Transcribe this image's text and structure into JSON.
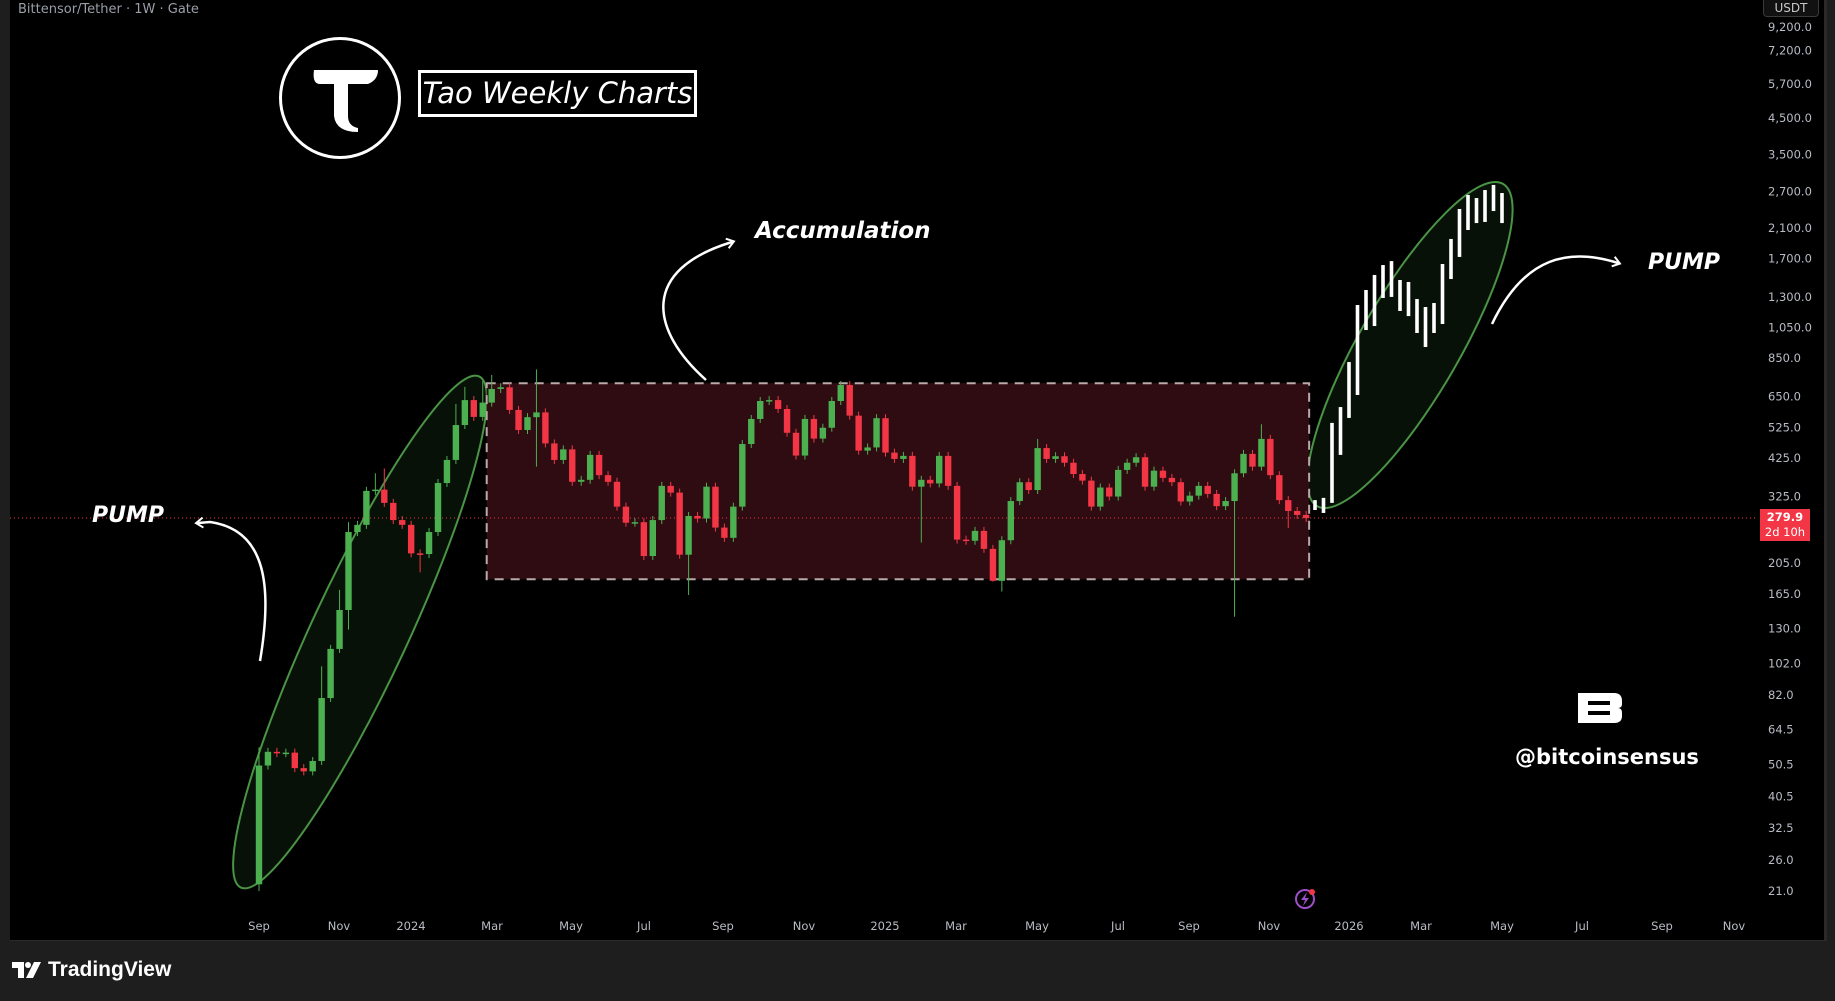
{
  "header": {
    "symbol": "Bittensor/Tether · 1W · Gate",
    "currency": "USDT"
  },
  "overlay": {
    "title": "Tao Weekly Charts",
    "accumulation_label": "Accumulation",
    "pump_left_label": "PUMP",
    "pump_right_label": "PUMP",
    "watermark_handle": "@bitcoinsensus",
    "watermark_logo": "B"
  },
  "price_tag": {
    "price": "279.9",
    "countdown": "2d 10h"
  },
  "footer": {
    "brand": "TradingView"
  },
  "colors": {
    "up": "#4caf50",
    "down": "#f23645",
    "projection": "#ffffff",
    "range_fill": "#2e0c12",
    "ellipse": "#4a9445",
    "background": "#000000"
  },
  "chart_data": {
    "type": "candlestick",
    "title": "Tao Weekly Charts",
    "y_scale": "log",
    "ylim": [
      21,
      9200
    ],
    "y_ticks": [
      "9,200.0",
      "7,200.0",
      "5,700.0",
      "4,500.0",
      "3,500.0",
      "2,700.0",
      "2,100.0",
      "1,700.0",
      "1,300.0",
      "1,050.0",
      "850.0",
      "650.0",
      "525.0",
      "425.0",
      "325.0",
      "205.0",
      "165.0",
      "130.0",
      "102.0",
      "82.0",
      "64.5",
      "50.5",
      "40.5",
      "32.5",
      "26.0",
      "21.0"
    ],
    "x_ticks": [
      "Sep",
      "Nov",
      "2024",
      "Mar",
      "May",
      "Jul",
      "Sep",
      "Nov",
      "2025",
      "Mar",
      "May",
      "Jul",
      "Sep",
      "Nov",
      "2026",
      "Mar",
      "May",
      "Jul",
      "Sep",
      "Nov"
    ],
    "grid": false,
    "current_price": 279.9,
    "first_open": 22,
    "closes": [
      50.2,
      55.2,
      54.7,
      54.9,
      49.3,
      48.2,
      51.8,
      80.2,
      112.8,
      147.8,
      254,
      267,
      338,
      341,
      311,
      276,
      267,
      219,
      218,
      254,
      357,
      419,
      534,
      635,
      565,
      624,
      686,
      694,
      593,
      516,
      564,
      583,
      470,
      419,
      451,
      360,
      365,
      434,
      377,
      360,
      303,
      271,
      272,
      215,
      276,
      350,
      334,
      217,
      284,
      279,
      348,
      262,
      244,
      303,
      468,
      557,
      631,
      635,
      597,
      506,
      432,
      557,
      486,
      524,
      631,
      705,
      570,
      447,
      457,
      560,
      441,
      422,
      431,
      348,
      365,
      356,
      431,
      350,
      241,
      239,
      256,
      226,
      181,
      240,
      315,
      359,
      340,
      455,
      422,
      430,
      411,
      380,
      363,
      303,
      346,
      325,
      391,
      411,
      427,
      348,
      389,
      370,
      359,
      314,
      327,
      350,
      331,
      304,
      315,
      382,
      437,
      400,
      485,
      377,
      317,
      294,
      286,
      279.9
    ],
    "wicks": [
      {
        "i": 0,
        "high": 57,
        "low": 21
      },
      {
        "i": 7,
        "high": 100
      },
      {
        "i": 9,
        "high": 170
      },
      {
        "i": 10,
        "high": 272,
        "low": 129
      },
      {
        "i": 13,
        "high": 382
      },
      {
        "i": 14,
        "high": 395
      },
      {
        "i": 18,
        "low": 192
      },
      {
        "i": 22,
        "high": 618
      },
      {
        "i": 23,
        "high": 696
      },
      {
        "i": 25,
        "high": 725
      },
      {
        "i": 26,
        "high": 756
      },
      {
        "i": 31,
        "high": 786,
        "low": 400
      },
      {
        "i": 48,
        "low": 164
      },
      {
        "i": 74,
        "low": 236
      },
      {
        "i": 82,
        "low": 180
      },
      {
        "i": 83,
        "low": 168
      },
      {
        "i": 87,
        "high": 485
      },
      {
        "i": 109,
        "low": 141
      },
      {
        "i": 112,
        "high": 537
      },
      {
        "i": 115,
        "low": 261
      }
    ],
    "range_box": {
      "label": "Accumulation",
      "top": 714,
      "bottom": 183
    },
    "projection": [
      [
        296,
        317
      ],
      [
        290,
        322
      ],
      [
        311,
        542
      ],
      [
        434,
        605
      ],
      [
        561,
        827
      ],
      [
        658,
        1229
      ],
      [
        1033,
        1364
      ],
      [
        1062,
        1514
      ],
      [
        1290,
        1622
      ],
      [
        1300,
        1667
      ],
      [
        1179,
        1462
      ],
      [
        1138,
        1442
      ],
      [
        1012,
        1281
      ],
      [
        918,
        1212
      ],
      [
        1012,
        1246
      ],
      [
        1077,
        1634
      ],
      [
        1472,
        1944
      ],
      [
        1716,
        2394
      ],
      [
        2069,
        2638
      ],
      [
        2171,
        2583
      ],
      [
        2188,
        2731
      ],
      [
        2360,
        2829
      ],
      [
        2171,
        2675
      ]
    ]
  }
}
